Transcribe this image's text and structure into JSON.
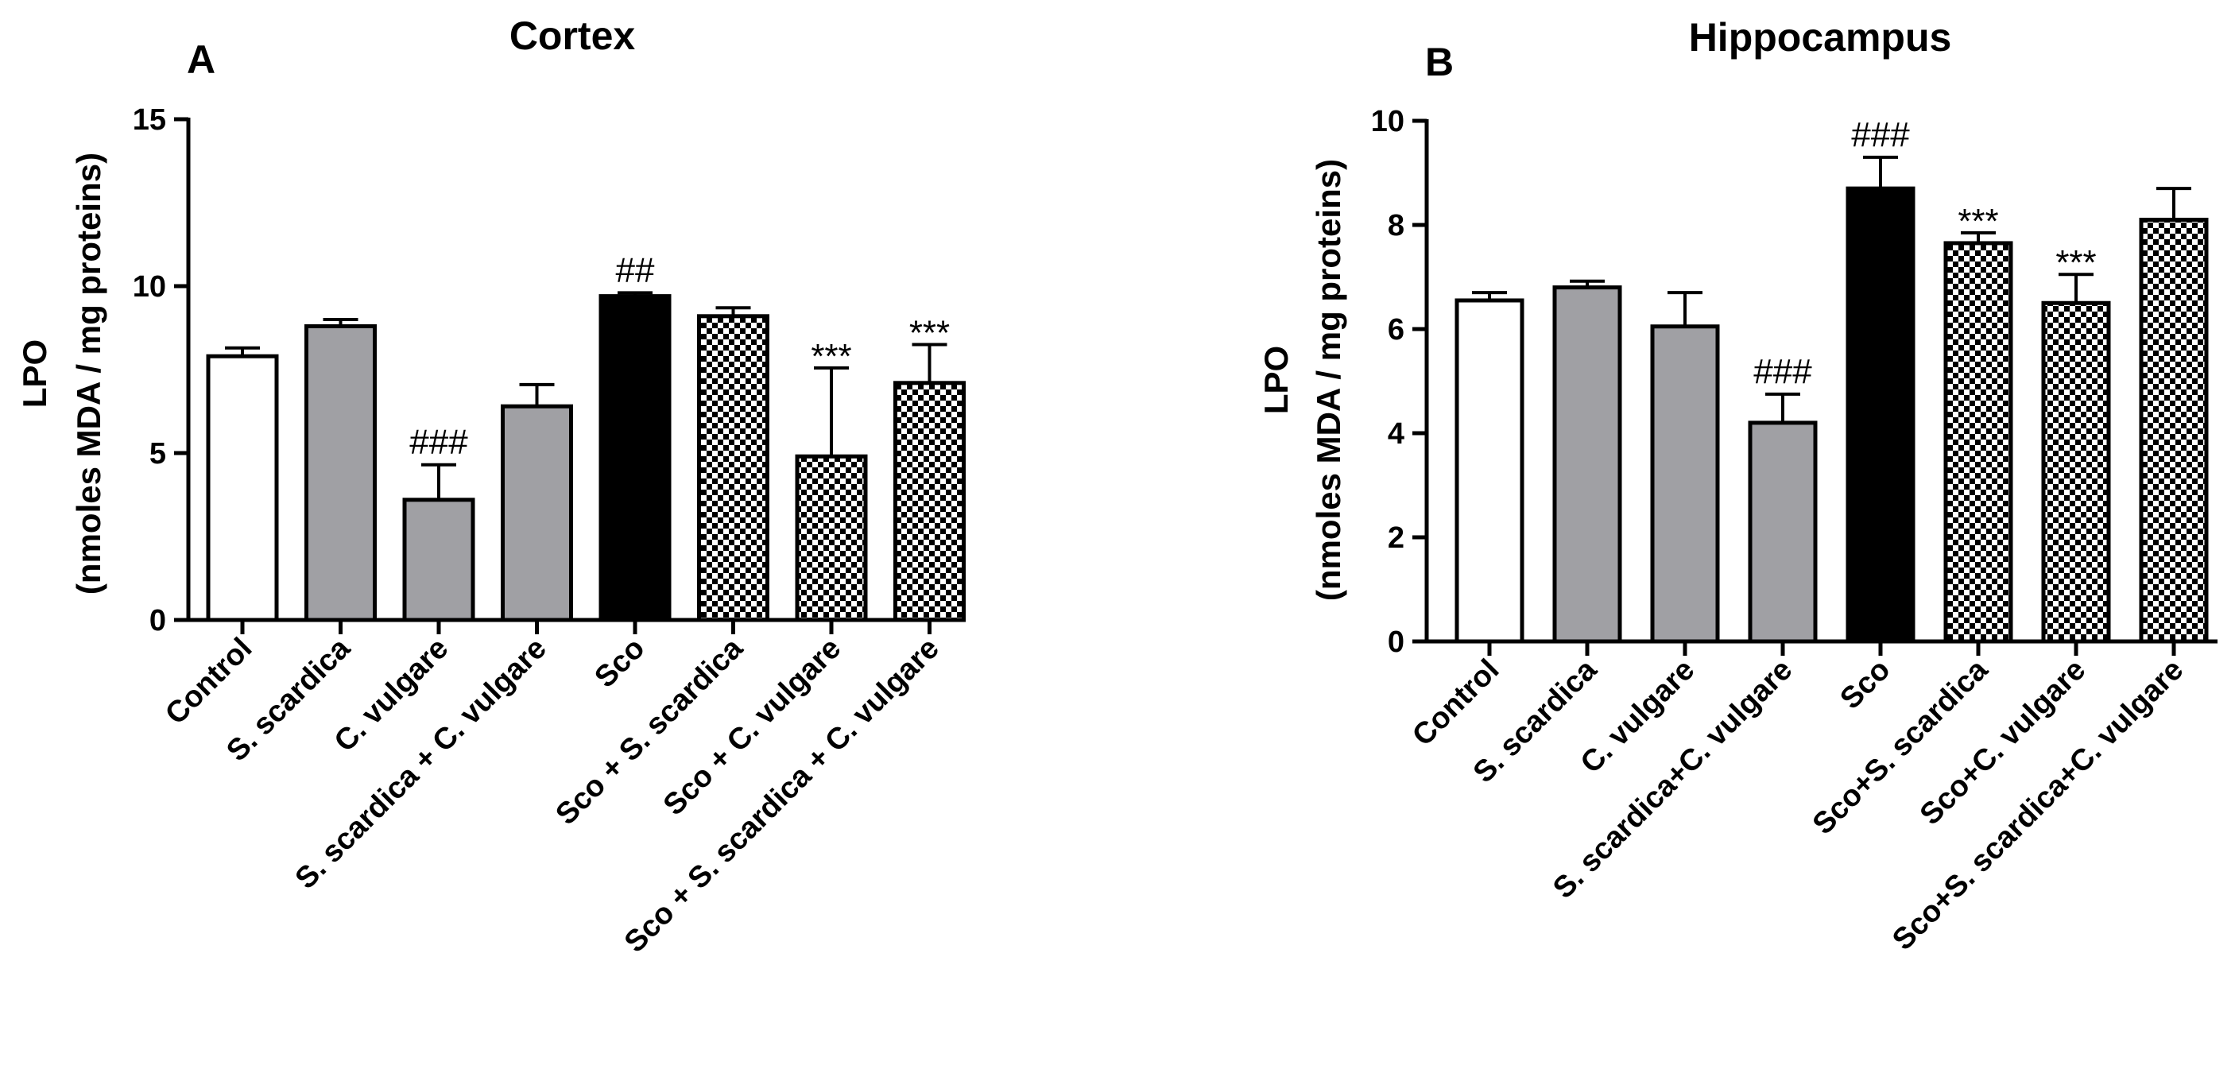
{
  "chart_data": [
    {
      "type": "bar",
      "panel": "A",
      "title": "Cortex",
      "ylabel_line1": "LPO",
      "ylabel_line2": "(nmoles MDA / mg proteins)",
      "xlabel": "",
      "ylim": [
        0,
        15
      ],
      "yticks": [
        0,
        5,
        10,
        15
      ],
      "categories": [
        "Control",
        "S. scardica",
        "C. vulgare",
        "S. scardica + C. vulgare",
        "Sco",
        "Sco + S. scardica",
        "Sco + C. vulgare",
        "Sco + S. scardica + C. vulgare"
      ],
      "values": [
        7.9,
        8.8,
        3.6,
        6.4,
        9.7,
        9.1,
        4.9,
        7.1
      ],
      "errors": [
        0.25,
        0.2,
        1.05,
        0.65,
        0.1,
        0.25,
        2.65,
        1.15
      ],
      "annotations": [
        "",
        "",
        "###",
        "",
        "##",
        "",
        "***",
        "***"
      ],
      "fills": [
        "white",
        "gray",
        "gray",
        "gray",
        "black",
        "checker",
        "checker",
        "checker"
      ]
    },
    {
      "type": "bar",
      "panel": "B",
      "title": "Hippocampus",
      "ylabel_line1": "LPO",
      "ylabel_line2": "(nmoles MDA / mg proteins)",
      "xlabel": "",
      "ylim": [
        0,
        10
      ],
      "yticks": [
        0,
        2,
        4,
        6,
        8,
        10
      ],
      "categories": [
        "Control",
        "S. scardica",
        "C. vulgare",
        "S. scardica+C. vulgare",
        "Sco",
        "Sco+S. scardica",
        "Sco+C. vulgare",
        "Sco+S. scardica+C. vulgare"
      ],
      "values": [
        6.55,
        6.8,
        6.05,
        4.2,
        8.7,
        7.65,
        6.5,
        8.1
      ],
      "errors": [
        0.15,
        0.12,
        0.65,
        0.55,
        0.6,
        0.2,
        0.55,
        0.6
      ],
      "annotations": [
        "",
        "",
        "",
        "###",
        "###",
        "***",
        "***",
        ""
      ],
      "fills": [
        "white",
        "gray",
        "gray",
        "gray",
        "black",
        "checker",
        "checker",
        "checker"
      ]
    }
  ]
}
